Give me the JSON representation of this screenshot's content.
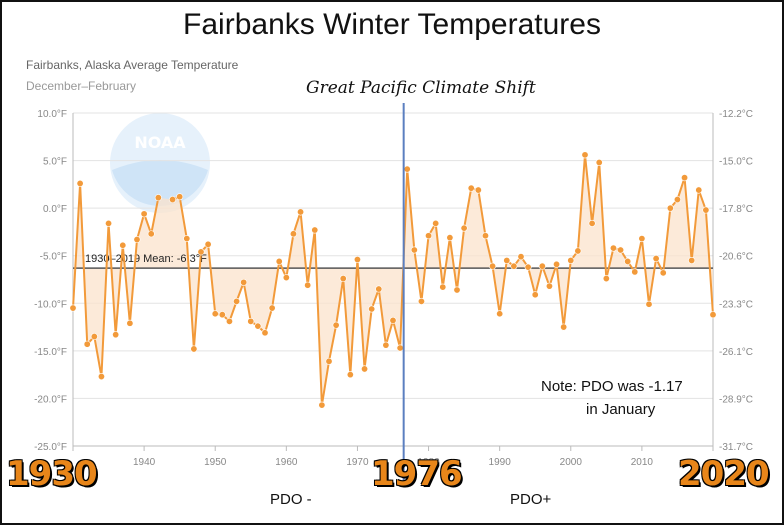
{
  "title": "Fairbanks Winter Temperatures",
  "subtitle": "Fairbanks, Alaska Average Temperature",
  "subtitle2": "December–February",
  "shift_label": "Great Pacific Climate Shift",
  "mean_label": "1930–2019 Mean: -6.3°F",
  "note_line1": "Note: PDO was -1.17",
  "note_line2": "in January",
  "year_1930": "1930",
  "year_1976": "1976",
  "year_2020": "2020",
  "pdo_minus": "PDO -",
  "pdo_plus": "PDO+",
  "logo_text": "NOAA",
  "colors": {
    "series": "#f29a3a",
    "fill": "#fbe3cc",
    "mean": "#555555",
    "divider": "#5b7fc0",
    "year_labels": "#e8861a"
  },
  "chart_data": {
    "type": "line",
    "title": "Fairbanks Winter Temperatures",
    "subtitle": "Fairbanks, Alaska Average Temperature",
    "xlim": [
      1930,
      2020
    ],
    "ylim": [
      -25,
      10
    ],
    "xticks": [
      "1930",
      "1940",
      "1950",
      "1960",
      "1970",
      "1980",
      "1990",
      "2000",
      "2010",
      "2020"
    ],
    "yticks_left": [
      "10.0°F",
      "5.0°F",
      "0.0°F",
      "-5.0°F",
      "-10.0°F",
      "-15.0°F",
      "-20.0°F",
      "-25.0°F"
    ],
    "yticks_right": [
      "-12.2°C",
      "-15.0°C",
      "-17.8°C",
      "-20.6°C",
      "-23.3°C",
      "-26.1°C",
      "-28.9°C",
      "-31.7°C"
    ],
    "grid": true,
    "mean": -6.3,
    "divider_year": 1976.5,
    "x": [
      1930,
      1931,
      1932,
      1933,
      1934,
      1935,
      1936,
      1937,
      1938,
      1939,
      1940,
      1941,
      1942,
      1943,
      1944,
      1945,
      1946,
      1947,
      1948,
      1949,
      1950,
      1951,
      1952,
      1953,
      1954,
      1955,
      1956,
      1957,
      1958,
      1959,
      1960,
      1961,
      1962,
      1963,
      1964,
      1965,
      1966,
      1967,
      1968,
      1969,
      1970,
      1971,
      1972,
      1973,
      1974,
      1975,
      1976,
      1977,
      1978,
      1979,
      1980,
      1981,
      1982,
      1983,
      1984,
      1985,
      1986,
      1987,
      1988,
      1989,
      1990,
      1991,
      1992,
      1993,
      1994,
      1995,
      1996,
      1997,
      1998,
      1999,
      2000,
      2001,
      2002,
      2003,
      2004,
      2005,
      2006,
      2007,
      2008,
      2009,
      2010,
      2011,
      2012,
      2013,
      2014,
      2015,
      2016,
      2017,
      2018,
      2019,
      2020
    ],
    "values": [
      -10.5,
      2.6,
      -14.3,
      -13.5,
      -17.7,
      -1.6,
      -13.3,
      -3.9,
      -12.1,
      -3.3,
      -0.6,
      -2.7,
      1.1,
      null,
      0.9,
      1.2,
      -3.2,
      -14.8,
      -4.6,
      -3.8,
      -11.1,
      -11.2,
      -11.9,
      -9.8,
      -7.8,
      -11.9,
      -12.4,
      -13.1,
      -10.5,
      -5.6,
      -7.3,
      -2.7,
      -0.4,
      -8.1,
      -2.3,
      -20.7,
      -16.1,
      -12.3,
      -7.4,
      -17.5,
      -5.4,
      -16.9,
      -10.6,
      -8.5,
      -14.4,
      -11.8,
      -14.7,
      4.1,
      -4.4,
      -9.8,
      -2.9,
      -1.6,
      -8.3,
      -3.1,
      -8.6,
      -2.1,
      2.1,
      1.9,
      -2.9,
      -6.1,
      -11.1,
      -5.5,
      -6.1,
      -5.1,
      -6.2,
      -9.1,
      -6.1,
      -8.2,
      -5.9,
      -12.5,
      -5.5,
      -4.5,
      5.6,
      -1.6,
      4.8,
      -7.4,
      -4.2,
      -4.4,
      -5.6,
      -6.7,
      -3.2,
      -10.1,
      -5.3,
      -6.8,
      0.0,
      0.9,
      3.2,
      -5.5,
      1.9,
      -0.2,
      -11.2
    ]
  }
}
